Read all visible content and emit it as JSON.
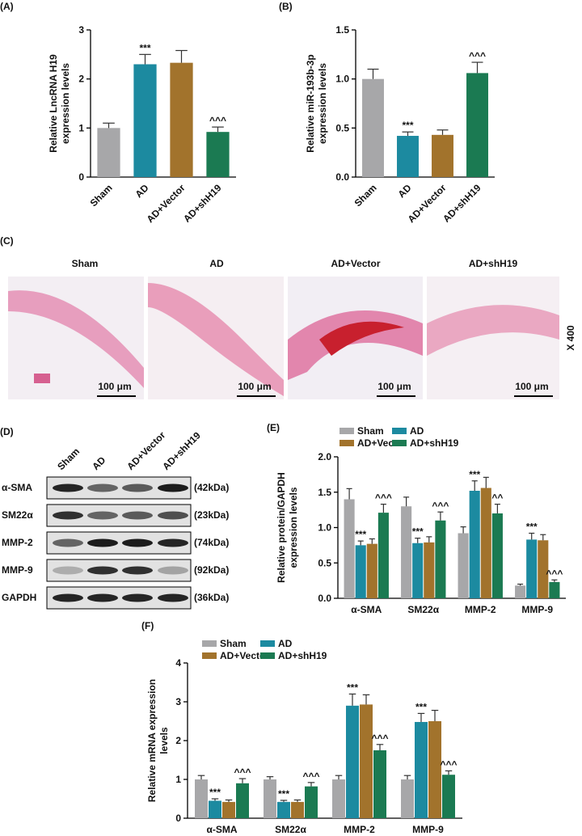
{
  "chart_data": [
    {
      "type": "bar",
      "label": "(A)",
      "ylabel": [
        "Relative LncRNA H19",
        "expression levels"
      ],
      "categories": [
        "Sham",
        "AD",
        "AD+Vector",
        "AD+shH19"
      ],
      "series": [
        {
          "values": [
            1.0,
            2.3,
            2.33,
            0.92
          ],
          "errors": [
            0.1,
            0.2,
            0.25,
            0.1
          ],
          "colors": [
            "#a7a7a9",
            "#1c8aa0",
            "#a2732c",
            "#1b7a52"
          ],
          "significance": [
            null,
            "***",
            null,
            "^^^"
          ]
        }
      ],
      "ylim": [
        0,
        3
      ],
      "yticks": [
        0,
        1,
        2,
        3
      ]
    },
    {
      "type": "bar",
      "label": "(B)",
      "ylabel": [
        "Relative miR-193b-3p",
        "expression levels"
      ],
      "categories": [
        "Sham",
        "AD",
        "AD+Vector",
        "AD+shH19"
      ],
      "series": [
        {
          "values": [
            1.0,
            0.42,
            0.43,
            1.06
          ],
          "errors": [
            0.1,
            0.04,
            0.05,
            0.11
          ],
          "colors": [
            "#a7a7a9",
            "#1c8aa0",
            "#a2732c",
            "#1b7a52"
          ],
          "significance": [
            null,
            "***",
            null,
            "^^^"
          ]
        }
      ],
      "ylim": [
        0,
        1.5
      ],
      "yticks": [
        {
          "value": 0,
          "label": "0.0"
        },
        0.5,
        {
          "value": 1,
          "label": "1.0"
        },
        1.5
      ]
    },
    {
      "type": "bar",
      "label": "(E)",
      "ylabel": [
        "Relative protein/GAPDH",
        "expression levels"
      ],
      "categories": [
        "α-SMA",
        "SM22α",
        "MMP-2",
        "MMP-9"
      ],
      "series": [
        {
          "name": "Sham",
          "color": "#a7a7a9",
          "values": [
            1.4,
            1.3,
            0.92,
            0.18
          ],
          "errors": [
            0.15,
            0.13,
            0.09,
            0.02
          ],
          "significance": [
            null,
            null,
            null,
            null
          ]
        },
        {
          "name": "AD",
          "color": "#1c8aa0",
          "values": [
            0.75,
            0.78,
            1.52,
            0.83
          ],
          "errors": [
            0.06,
            0.07,
            0.14,
            0.09
          ],
          "significance": [
            "***",
            "***",
            "***",
            "***"
          ]
        },
        {
          "name": "AD+Vector",
          "color": "#a2732c",
          "values": [
            0.77,
            0.79,
            1.56,
            0.82
          ],
          "errors": [
            0.07,
            0.08,
            0.15,
            0.08
          ],
          "significance": [
            null,
            null,
            null,
            null
          ]
        },
        {
          "name": "AD+shH19",
          "color": "#1b7a52",
          "values": [
            1.21,
            1.1,
            1.2,
            0.23
          ],
          "errors": [
            0.12,
            0.12,
            0.13,
            0.03
          ],
          "significance": [
            "^^^",
            "^^^",
            "^^",
            "^^^"
          ]
        }
      ],
      "ylim": [
        0,
        2
      ],
      "yticks": [
        {
          "value": 0,
          "label": "0.0"
        },
        0.5,
        {
          "value": 1,
          "label": "1.0"
        },
        1.5,
        {
          "value": 2,
          "label": "2.0"
        }
      ]
    },
    {
      "type": "bar",
      "label": "(F)",
      "ylabel": [
        "Relative mRNA expression",
        "levels"
      ],
      "categories": [
        "α-SMA",
        "SM22α",
        "MMP-2",
        "MMP-9"
      ],
      "series": [
        {
          "name": "Sham",
          "color": "#a7a7a9",
          "values": [
            1.0,
            1.0,
            1.0,
            1.0
          ],
          "errors": [
            0.1,
            0.07,
            0.1,
            0.1
          ],
          "significance": [
            null,
            null,
            null,
            null
          ]
        },
        {
          "name": "AD",
          "color": "#1c8aa0",
          "values": [
            0.45,
            0.42,
            2.9,
            2.48
          ],
          "errors": [
            0.05,
            0.04,
            0.3,
            0.22
          ],
          "significance": [
            "***",
            "***",
            "***",
            "***"
          ]
        },
        {
          "name": "AD+Vector",
          "color": "#a2732c",
          "values": [
            0.42,
            0.42,
            2.93,
            2.5
          ],
          "errors": [
            0.05,
            0.05,
            0.25,
            0.28
          ],
          "significance": [
            null,
            null,
            null,
            null
          ]
        },
        {
          "name": "AD+shH19",
          "color": "#1b7a52",
          "values": [
            0.9,
            0.82,
            1.75,
            1.12
          ],
          "errors": [
            0.12,
            0.1,
            0.15,
            0.1
          ],
          "significance": [
            "^^^",
            "^^^",
            "^^^",
            "^^^"
          ]
        }
      ],
      "ylim": [
        0,
        4
      ],
      "yticks": [
        0,
        1,
        2,
        3,
        4
      ]
    }
  ],
  "panel_c": {
    "label": "(C)",
    "titles": [
      "Sham",
      "AD",
      "AD+Vector",
      "AD+shH19"
    ],
    "scale_bars": [
      "100 μm",
      "100 μm",
      "100 μm",
      "100 μm"
    ],
    "magnification": "X 400"
  },
  "panel_d": {
    "label": "(D)",
    "lanes": [
      "Sham",
      "AD",
      "AD+Vector",
      "AD+shH19"
    ],
    "proteins": [
      "α-SMA",
      "SM22α",
      "MMP-2",
      "MMP-9",
      "GAPDH"
    ],
    "sizes": [
      "(42kDa)",
      "(23kDa)",
      "(74kDa)",
      "(92kDa)",
      "(36kDa)"
    ]
  }
}
